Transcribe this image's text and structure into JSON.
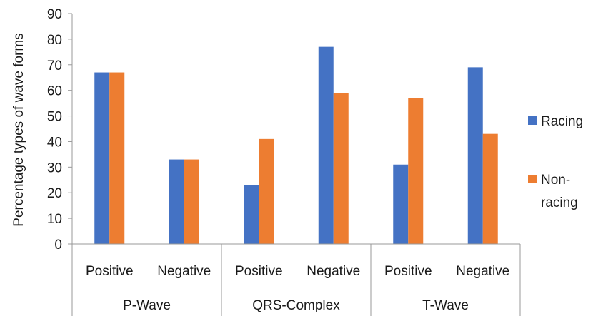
{
  "chart_data": {
    "type": "bar",
    "title": "",
    "ylabel": "Percentage types of wave forms",
    "xlabel": "",
    "ylim": [
      0,
      90
    ],
    "yticks": [
      0,
      10,
      20,
      30,
      40,
      50,
      60,
      70,
      80,
      90
    ],
    "grid": false,
    "legend_position": "right",
    "groups": [
      {
        "label": "P-Wave",
        "categories": [
          "Positive",
          "Negative"
        ]
      },
      {
        "label": "QRS-Complex",
        "categories": [
          "Positive",
          "Negative"
        ]
      },
      {
        "label": "T-Wave",
        "categories": [
          "Positive",
          "Negative"
        ]
      }
    ],
    "categories": [
      "Positive",
      "Negative",
      "Positive",
      "Negative",
      "Positive",
      "Negative"
    ],
    "series": [
      {
        "name": "Racing",
        "color": "#4472C4",
        "values": [
          67,
          33,
          23,
          77,
          31,
          69
        ]
      },
      {
        "name": "Non-racing",
        "name_lines": [
          "Non-",
          "racing"
        ],
        "color": "#ED7D31",
        "values": [
          67,
          33,
          41,
          59,
          57,
          43
        ]
      }
    ]
  }
}
